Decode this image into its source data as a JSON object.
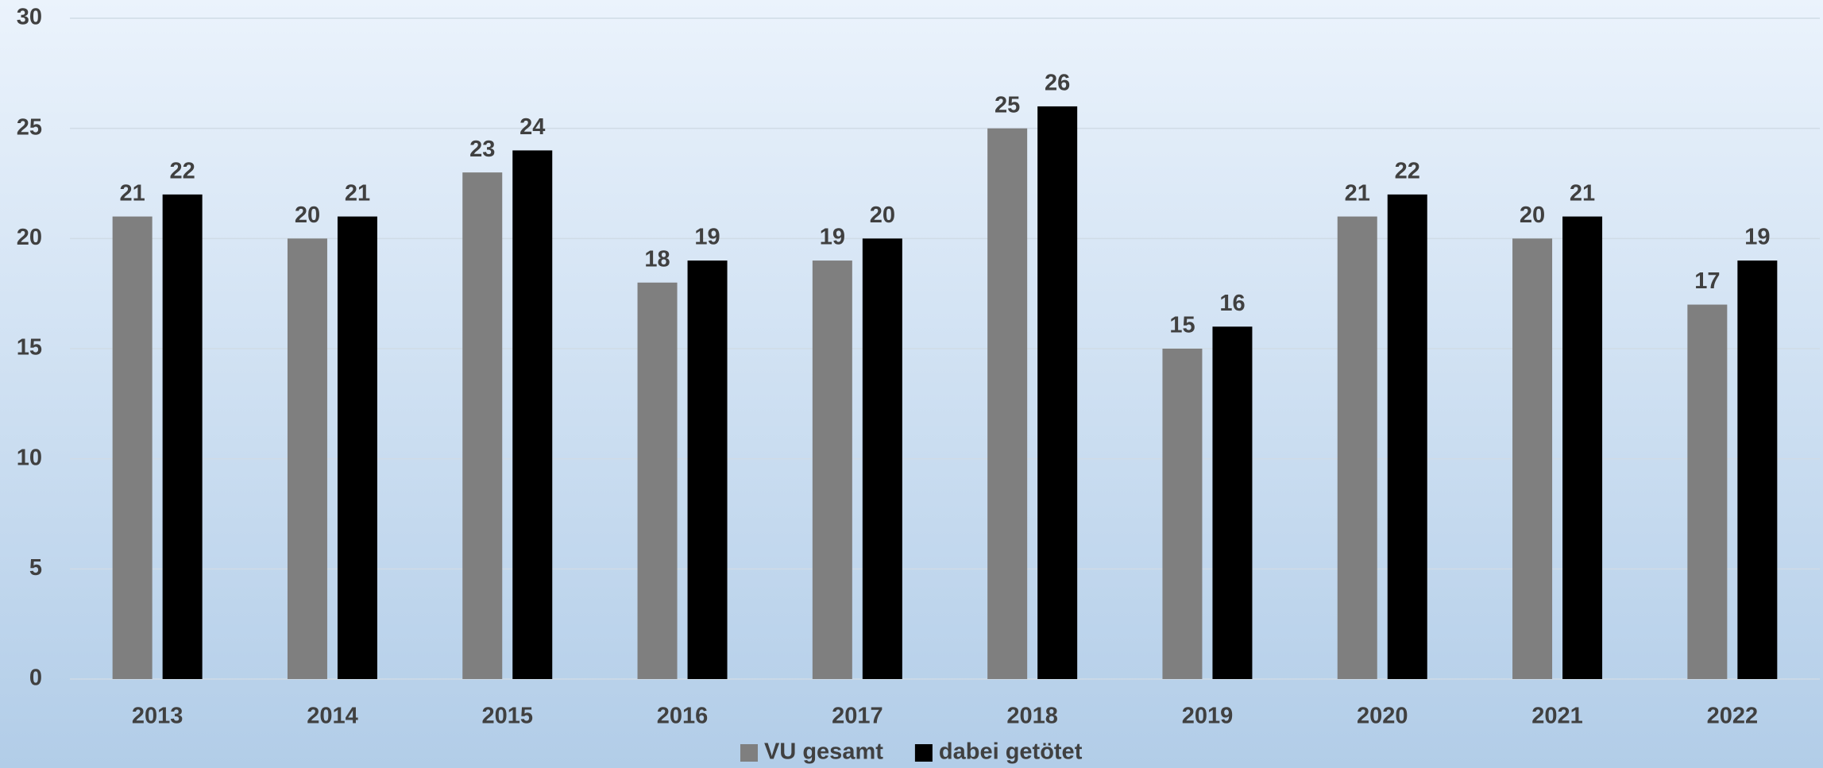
{
  "chart_data": {
    "type": "bar",
    "categories": [
      "2013",
      "2014",
      "2015",
      "2016",
      "2017",
      "2018",
      "2019",
      "2020",
      "2021",
      "2022"
    ],
    "series": [
      {
        "name": "VU gesamt",
        "color": "#7f7f7f",
        "values": [
          21,
          20,
          23,
          18,
          19,
          25,
          15,
          21,
          20,
          17
        ]
      },
      {
        "name": "dabei getötet",
        "color": "#000000",
        "values": [
          22,
          21,
          24,
          19,
          20,
          26,
          16,
          22,
          21,
          19
        ]
      }
    ],
    "ylim": [
      0,
      30
    ],
    "yticks": [
      0,
      5,
      10,
      15,
      20,
      25,
      30
    ],
    "grid": true,
    "legend": "bottom"
  }
}
